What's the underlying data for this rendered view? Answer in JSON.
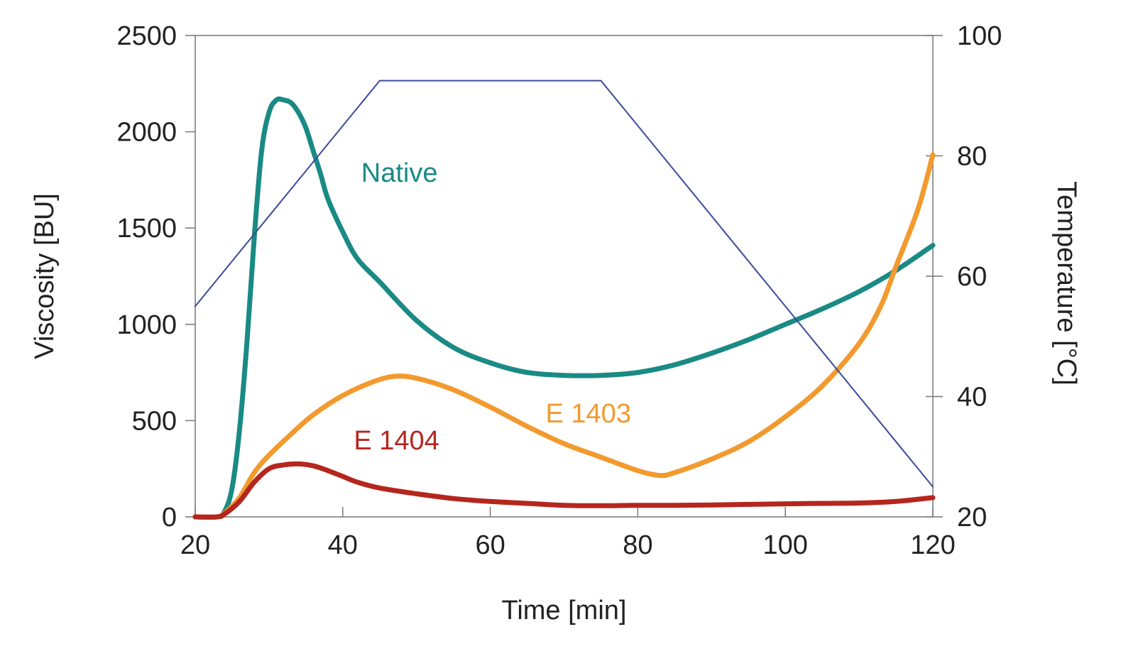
{
  "chart_data": {
    "type": "line",
    "xlabel": "Time [min]",
    "ylabel": "Viscosity [BU]",
    "y2label": "Temperature [°C]",
    "xlim": [
      20,
      120
    ],
    "ylim": [
      0,
      2500
    ],
    "y2lim": [
      20,
      100
    ],
    "x_ticks": [
      "20",
      "40",
      "60",
      "80",
      "100",
      "120"
    ],
    "y_ticks": [
      "0",
      "500",
      "1000",
      "1500",
      "2000",
      "2500"
    ],
    "y2_ticks": [
      "20",
      "40",
      "60",
      "80",
      "100"
    ],
    "grid": false,
    "series": [
      {
        "name": "Native",
        "axis": "left",
        "color": "#1a8a85",
        "x": [
          20,
          23,
          24,
          25,
          26,
          27,
          28,
          29,
          30,
          31,
          32,
          33,
          34,
          35,
          36,
          37,
          38,
          40,
          42,
          45,
          50,
          55,
          60,
          65,
          70,
          75,
          80,
          85,
          90,
          95,
          100,
          105,
          110,
          115,
          120
        ],
        "y": [
          0,
          0,
          30,
          150,
          450,
          900,
          1450,
          1900,
          2100,
          2165,
          2165,
          2150,
          2100,
          2020,
          1900,
          1780,
          1650,
          1480,
          1340,
          1220,
          1020,
          880,
          800,
          750,
          735,
          735,
          750,
          790,
          850,
          920,
          1000,
          1080,
          1170,
          1280,
          1410
        ]
      },
      {
        "name": "E 1403",
        "axis": "left",
        "color": "#f29a2e",
        "x": [
          20,
          23,
          24,
          26,
          28,
          30,
          33,
          36,
          40,
          44,
          47,
          50,
          55,
          60,
          65,
          70,
          75,
          80,
          83,
          85,
          90,
          95,
          100,
          105,
          110,
          113,
          115,
          118,
          120
        ],
        "y": [
          0,
          0,
          20,
          100,
          230,
          320,
          430,
          530,
          630,
          700,
          730,
          720,
          660,
          570,
          470,
          380,
          310,
          240,
          215,
          230,
          300,
          390,
          520,
          680,
          900,
          1100,
          1300,
          1600,
          1880
        ]
      },
      {
        "name": "E 1404",
        "axis": "left",
        "color": "#b5261e",
        "x": [
          20,
          23,
          24,
          26,
          28,
          30,
          32,
          34,
          36,
          38,
          40,
          42,
          45,
          50,
          55,
          60,
          65,
          70,
          75,
          80,
          85,
          90,
          95,
          100,
          105,
          110,
          115,
          120
        ],
        "y": [
          0,
          0,
          15,
          80,
          180,
          250,
          270,
          275,
          265,
          240,
          210,
          180,
          150,
          120,
          95,
          80,
          70,
          60,
          58,
          60,
          60,
          62,
          65,
          68,
          70,
          72,
          80,
          100
        ]
      },
      {
        "axis": "right",
        "color": "#3b4a9a",
        "x": [
          20,
          45,
          75,
          120
        ],
        "y": [
          55,
          92.5,
          92.5,
          25
        ]
      }
    ],
    "labels": [
      {
        "text": "Native",
        "x": 42.5,
        "y": 1740,
        "color": "#1a8a85"
      },
      {
        "text": "E 1403",
        "x": 67.5,
        "y": 490,
        "color": "#f29a2e"
      },
      {
        "text": "E 1404",
        "x": 41.5,
        "y": 350,
        "color": "#b5261e"
      }
    ]
  }
}
